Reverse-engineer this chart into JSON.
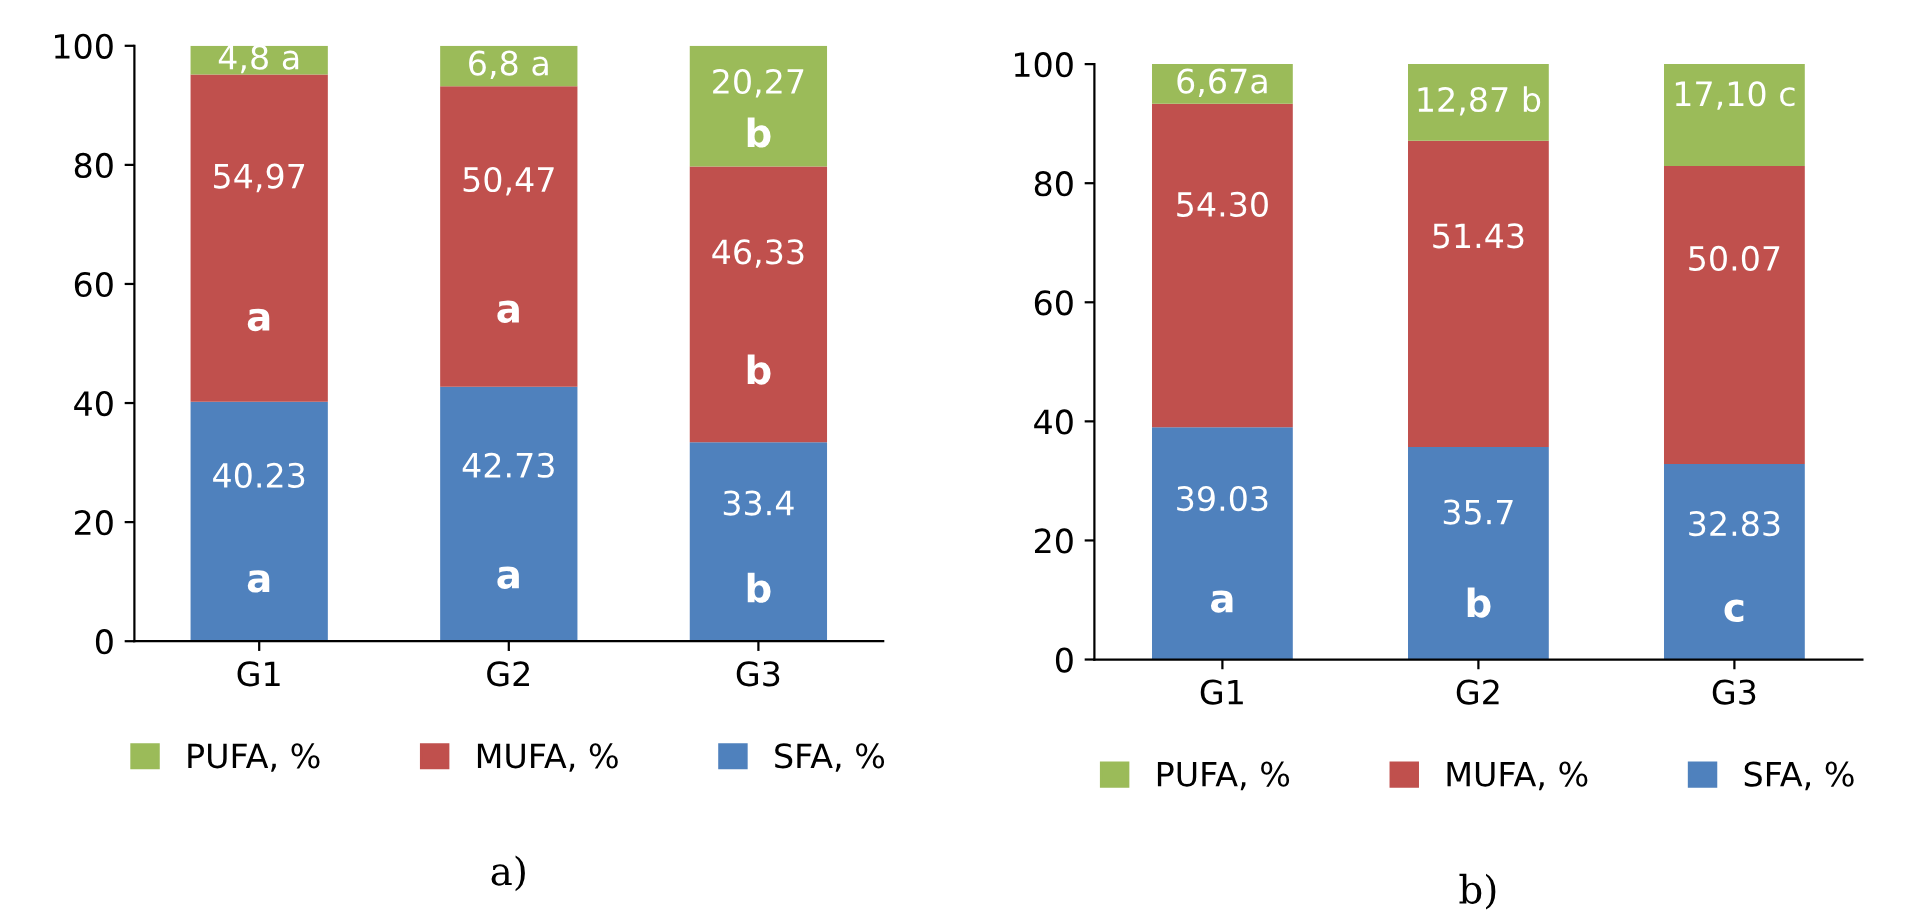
{
  "chart_data": [
    {
      "type": "bar",
      "stacked": true,
      "categories": [
        "G1",
        "G2",
        "G3"
      ],
      "ylim": [
        0,
        100
      ],
      "yticks": [
        0,
        20,
        40,
        60,
        80,
        100
      ],
      "grid": false,
      "legend": "bottom",
      "series": [
        {
          "name": "SFA, %",
          "color": "#4f81bd",
          "values": [
            40.23,
            42.73,
            33.4
          ],
          "value_labels": [
            "40.23\na",
            "42.73\na",
            "33.4\nb"
          ]
        },
        {
          "name": "MUFA, %",
          "color": "#c0504d",
          "values": [
            54.97,
            50.47,
            46.33
          ],
          "value_labels": [
            "54,97\na",
            "50,47\na",
            "46,33\nb"
          ]
        },
        {
          "name": "PUFA, %",
          "color": "#9bbb59",
          "values": [
            4.8,
            6.8,
            20.27
          ],
          "value_labels": [
            "4,8 a",
            "6,8 a",
            "20,27\nb"
          ]
        }
      ],
      "annotations": [
        "a)"
      ]
    },
    {
      "type": "bar",
      "stacked": true,
      "categories": [
        "G1",
        "G2",
        "G3"
      ],
      "ylim": [
        0,
        100
      ],
      "yticks": [
        0,
        20,
        40,
        60,
        80,
        100
      ],
      "grid": false,
      "legend": "bottom",
      "series": [
        {
          "name": "SFA, %",
          "color": "#4f81bd",
          "values": [
            39.03,
            35.7,
            32.83
          ],
          "value_labels": [
            "39.03\na",
            "35.7\nb",
            "32.83\nc"
          ]
        },
        {
          "name": "MUFA, %",
          "color": "#c0504d",
          "values": [
            54.3,
            51.43,
            50.07
          ],
          "value_labels": [
            "54.30",
            "51.43",
            "50.07"
          ]
        },
        {
          "name": "PUFA, %",
          "color": "#9bbb59",
          "values": [
            6.67,
            12.87,
            17.1
          ],
          "value_labels": [
            "6,67a",
            "12,87 b",
            "17,10 c"
          ]
        }
      ],
      "annotations": [
        "b)"
      ]
    }
  ]
}
